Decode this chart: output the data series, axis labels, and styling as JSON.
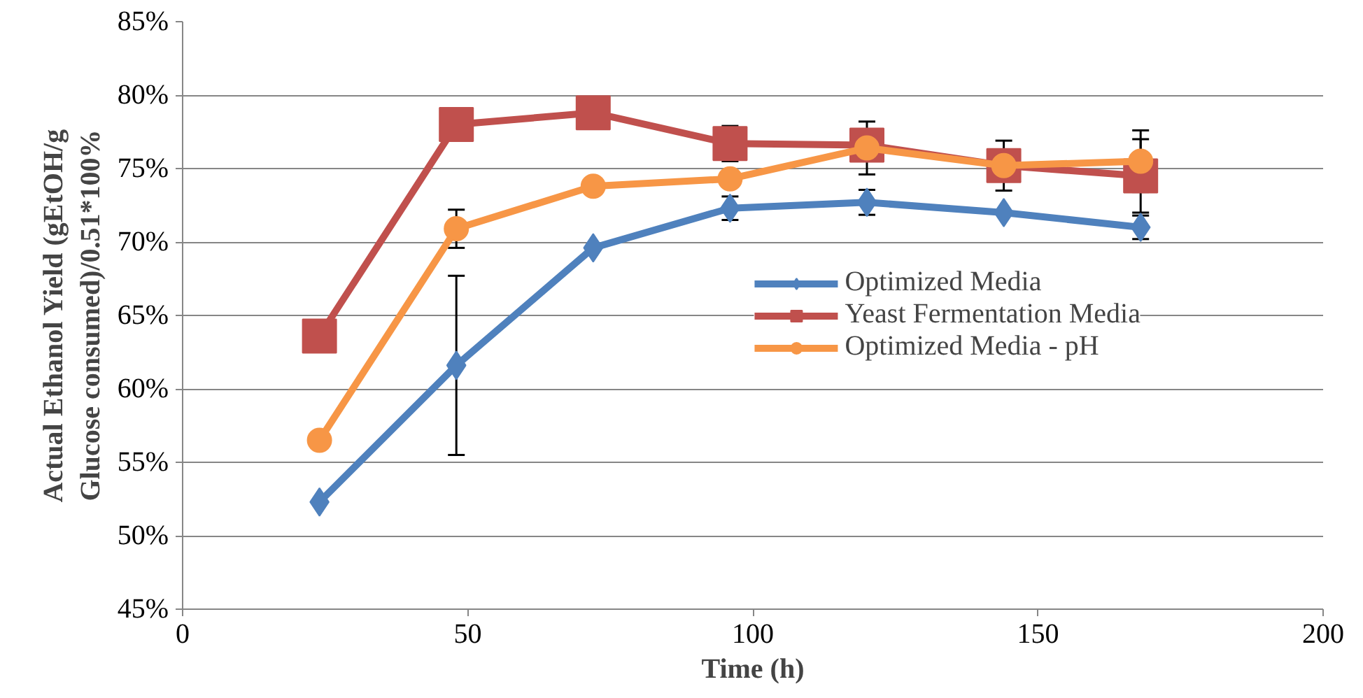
{
  "chart_data": {
    "type": "line",
    "xlabel": "Time (h)",
    "ylabel": "Actual Ethanol Yield (gEtOH/g\nGlucose consumed)/0.51*100%",
    "x": [
      24,
      48,
      72,
      96,
      120,
      144,
      168
    ],
    "series": [
      {
        "name": "Optimized Media",
        "color": "#4f81bd",
        "marker": "diamond",
        "values": [
          52.3,
          61.6,
          69.6,
          72.3,
          72.7,
          72.0,
          71.0
        ],
        "errors": [
          null,
          6.1,
          null,
          0.8,
          0.85,
          null,
          0.8
        ]
      },
      {
        "name": "Yeast Fermentation Media",
        "color": "#c0504d",
        "marker": "square",
        "values": [
          63.6,
          78.0,
          78.8,
          76.7,
          76.6,
          75.2,
          74.5
        ],
        "errors": [
          null,
          null,
          null,
          1.2,
          null,
          null,
          2.5
        ]
      },
      {
        "name": "Optimized Media - pH",
        "color": "#f79646",
        "marker": "circle",
        "values": [
          56.5,
          70.9,
          73.8,
          74.3,
          76.4,
          75.2,
          75.5
        ],
        "errors": [
          null,
          1.3,
          null,
          null,
          1.8,
          1.7,
          2.1
        ]
      }
    ],
    "xlim": [
      0,
      200
    ],
    "xticks": [
      0,
      50,
      100,
      150,
      200
    ],
    "ylim": [
      45,
      85
    ],
    "yticks": [
      {
        "value": 45,
        "label": "45%"
      },
      {
        "value": 50,
        "label": "50%"
      },
      {
        "value": 55,
        "label": "55%"
      },
      {
        "value": 60,
        "label": "60%"
      },
      {
        "value": 65,
        "label": "65%"
      },
      {
        "value": 70,
        "label": "70%"
      },
      {
        "value": 75,
        "label": "75%"
      },
      {
        "value": 80,
        "label": "80%"
      },
      {
        "value": 85,
        "label": "85%"
      }
    ],
    "grid": "y",
    "legend": "center right",
    "line_style": "solid"
  }
}
